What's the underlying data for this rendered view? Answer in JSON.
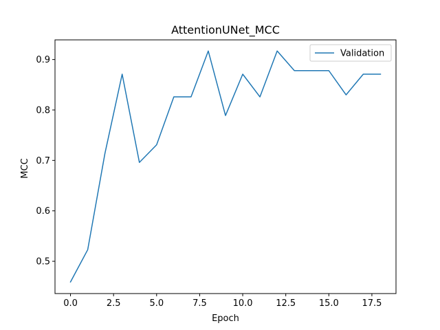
{
  "chart_data": {
    "type": "line",
    "title": "AttentionUNet_MCC",
    "xlabel": "Epoch",
    "ylabel": "MCC",
    "xlim": [
      -0.9,
      18.9
    ],
    "ylim": [
      0.436,
      0.939
    ],
    "xticks": [
      0.0,
      2.5,
      5.0,
      7.5,
      10.0,
      12.5,
      15.0,
      17.5
    ],
    "xtick_labels": [
      "0.0",
      "2.5",
      "5.0",
      "7.5",
      "10.0",
      "12.5",
      "15.0",
      "17.5"
    ],
    "yticks": [
      0.5,
      0.6,
      0.7,
      0.8,
      0.9
    ],
    "ytick_labels": [
      "0.5",
      "0.6",
      "0.7",
      "0.8",
      "0.9"
    ],
    "grid": false,
    "legend_position": "top-right",
    "series": [
      {
        "name": "Validation",
        "color": "#1f77b4",
        "x": [
          0,
          1,
          2,
          3,
          4,
          5,
          6,
          7,
          8,
          9,
          10,
          11,
          12,
          13,
          14,
          15,
          16,
          17,
          18
        ],
        "y": [
          0.459,
          0.523,
          0.714,
          0.871,
          0.696,
          0.731,
          0.826,
          0.826,
          0.917,
          0.789,
          0.871,
          0.826,
          0.917,
          0.878,
          0.878,
          0.878,
          0.83,
          0.871,
          0.871
        ]
      }
    ]
  }
}
